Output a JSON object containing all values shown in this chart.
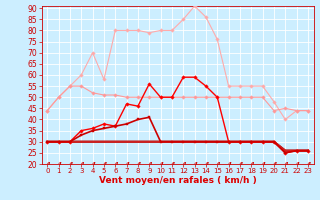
{
  "x": [
    0,
    1,
    2,
    3,
    4,
    5,
    6,
    7,
    8,
    9,
    10,
    11,
    12,
    13,
    14,
    15,
    16,
    17,
    18,
    19,
    20,
    21,
    22,
    23
  ],
  "series": [
    {
      "name": "gust_max",
      "color": "#ffaaaa",
      "lw": 0.8,
      "marker": "D",
      "ms": 1.8,
      "values": [
        44,
        50,
        55,
        60,
        70,
        58,
        80,
        80,
        80,
        79,
        80,
        80,
        85,
        91,
        86,
        76,
        55,
        55,
        55,
        55,
        48,
        40,
        44,
        44
      ]
    },
    {
      "name": "gust_avg",
      "color": "#ff9999",
      "lw": 0.8,
      "marker": "D",
      "ms": 1.8,
      "values": [
        44,
        50,
        55,
        55,
        52,
        51,
        51,
        50,
        50,
        50,
        50,
        50,
        50,
        50,
        50,
        50,
        50,
        50,
        50,
        50,
        44,
        45,
        44,
        44
      ]
    },
    {
      "name": "wind_peak",
      "color": "#ff0000",
      "lw": 1.0,
      "marker": "D",
      "ms": 1.8,
      "values": [
        30,
        30,
        30,
        35,
        36,
        38,
        37,
        47,
        46,
        56,
        50,
        50,
        59,
        59,
        55,
        50,
        30,
        30,
        30,
        30,
        30,
        25,
        26,
        26
      ]
    },
    {
      "name": "wind_avg",
      "color": "#cc0000",
      "lw": 1.2,
      "marker": "s",
      "ms": 1.5,
      "values": [
        30,
        30,
        30,
        33,
        35,
        36,
        37,
        38,
        40,
        41,
        30,
        30,
        30,
        30,
        30,
        30,
        30,
        30,
        30,
        30,
        30,
        25,
        26,
        26
      ]
    },
    {
      "name": "wind_flat1",
      "color": "#990000",
      "lw": 1.5,
      "marker": null,
      "ms": 0,
      "values": [
        30,
        30,
        30,
        30,
        30,
        30,
        30,
        30,
        30,
        30,
        30,
        30,
        30,
        30,
        30,
        30,
        30,
        30,
        30,
        30,
        30,
        26,
        26,
        26
      ]
    },
    {
      "name": "wind_flat2",
      "color": "#cc2222",
      "lw": 1.5,
      "marker": null,
      "ms": 0,
      "values": [
        30,
        30,
        30,
        30,
        30,
        30,
        30,
        30,
        30,
        30,
        30,
        30,
        30,
        30,
        30,
        30,
        30,
        30,
        30,
        30,
        30,
        26,
        26,
        26
      ]
    }
  ],
  "ylim": [
    20,
    91
  ],
  "yticks": [
    20,
    25,
    30,
    35,
    40,
    45,
    50,
    55,
    60,
    65,
    70,
    75,
    80,
    85,
    90
  ],
  "xlim": [
    -0.5,
    23.5
  ],
  "xticks": [
    0,
    1,
    2,
    3,
    4,
    5,
    6,
    7,
    8,
    9,
    10,
    11,
    12,
    13,
    14,
    15,
    16,
    17,
    18,
    19,
    20,
    21,
    22,
    23
  ],
  "xlabel": "Vent moyen/en rafales ( km/h )",
  "xlabel_color": "#dd0000",
  "xlabel_fontsize": 6.5,
  "ylabel_fontsize": 5.5,
  "xtick_fontsize": 5.0,
  "background_color": "#cceeff",
  "grid_color": "#ffffff",
  "tick_color": "#cc0000",
  "arrow_color": "#cc0000",
  "fig_width": 3.2,
  "fig_height": 2.0,
  "dpi": 100
}
